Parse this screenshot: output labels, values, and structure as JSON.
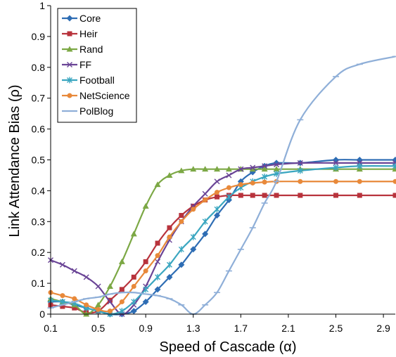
{
  "chart_data": {
    "type": "line",
    "xlabel": "Speed of Cascade (α)",
    "ylabel": "Link Attendance Bias (ρ)",
    "xlim": [
      0.1,
      3.0
    ],
    "ylim": [
      0,
      1
    ],
    "x_ticks": [
      "0.1",
      "0.5",
      "0.9",
      "1.3",
      "1.7",
      "2.1",
      "2.5",
      "2.9"
    ],
    "x_tick_values": [
      0.1,
      0.5,
      0.9,
      1.3,
      1.7,
      2.1,
      2.5,
      2.9
    ],
    "y_ticks": [
      "0",
      "0.1",
      "0.2",
      "0.3",
      "0.4",
      "0.5",
      "0.6",
      "0.7",
      "0.8",
      "0.9",
      "1"
    ],
    "y_tick_values": [
      0,
      0.1,
      0.2,
      0.3,
      0.4,
      0.5,
      0.6,
      0.7,
      0.8,
      0.9,
      1.0
    ],
    "grid": false,
    "legend_position": "top-left",
    "series": [
      {
        "name": "Core",
        "color": "#2E6DB4",
        "marker": "diamond",
        "x": [
          0.1,
          0.2,
          0.3,
          0.4,
          0.5,
          0.6,
          0.7,
          0.8,
          0.9,
          1.0,
          1.1,
          1.2,
          1.3,
          1.4,
          1.5,
          1.6,
          1.7,
          1.8,
          1.9,
          2.0,
          2.2,
          2.5,
          2.7,
          3.0
        ],
        "y": [
          0.04,
          0.04,
          0.03,
          0.02,
          0.01,
          0.0,
          0.0,
          0.01,
          0.04,
          0.08,
          0.12,
          0.16,
          0.21,
          0.26,
          0.32,
          0.37,
          0.43,
          0.46,
          0.48,
          0.49,
          0.49,
          0.5,
          0.5,
          0.5
        ]
      },
      {
        "name": "Heir",
        "color": "#B8333C",
        "marker": "square",
        "x": [
          0.1,
          0.2,
          0.3,
          0.4,
          0.5,
          0.6,
          0.7,
          0.8,
          0.9,
          1.0,
          1.1,
          1.2,
          1.3,
          1.4,
          1.5,
          1.6,
          1.7,
          1.8,
          1.9,
          2.0,
          2.2,
          2.5,
          2.7,
          3.0
        ],
        "y": [
          0.03,
          0.025,
          0.02,
          0.005,
          0.01,
          0.045,
          0.08,
          0.12,
          0.17,
          0.23,
          0.28,
          0.32,
          0.35,
          0.37,
          0.38,
          0.385,
          0.385,
          0.385,
          0.385,
          0.385,
          0.385,
          0.385,
          0.385,
          0.385
        ]
      },
      {
        "name": "Rand",
        "color": "#7CA845",
        "marker": "triangle",
        "x": [
          0.1,
          0.2,
          0.3,
          0.4,
          0.5,
          0.6,
          0.7,
          0.8,
          0.9,
          1.0,
          1.1,
          1.2,
          1.3,
          1.4,
          1.5,
          1.6,
          1.7,
          1.8,
          1.9,
          2.0,
          2.2,
          2.5,
          2.7,
          3.0
        ],
        "y": [
          0.05,
          0.04,
          0.03,
          0.0,
          0.03,
          0.09,
          0.17,
          0.26,
          0.35,
          0.42,
          0.45,
          0.465,
          0.47,
          0.47,
          0.47,
          0.47,
          0.47,
          0.47,
          0.47,
          0.47,
          0.47,
          0.47,
          0.47,
          0.47
        ]
      },
      {
        "name": "FF",
        "color": "#6A4496",
        "marker": "x",
        "x": [
          0.1,
          0.2,
          0.3,
          0.4,
          0.5,
          0.6,
          0.7,
          0.8,
          0.9,
          1.0,
          1.1,
          1.2,
          1.3,
          1.4,
          1.5,
          1.6,
          1.7,
          1.8,
          1.9,
          2.0,
          2.2,
          2.5,
          2.7,
          3.0
        ],
        "y": [
          0.175,
          0.16,
          0.14,
          0.12,
          0.09,
          0.04,
          0.0,
          0.03,
          0.09,
          0.17,
          0.24,
          0.3,
          0.35,
          0.39,
          0.43,
          0.45,
          0.47,
          0.475,
          0.48,
          0.485,
          0.49,
          0.49,
          0.49,
          0.49
        ]
      },
      {
        "name": "Football",
        "color": "#3AA6C0",
        "marker": "asterisk",
        "x": [
          0.1,
          0.2,
          0.3,
          0.4,
          0.5,
          0.6,
          0.7,
          0.8,
          0.9,
          1.0,
          1.1,
          1.2,
          1.3,
          1.4,
          1.5,
          1.6,
          1.7,
          1.8,
          1.9,
          2.0,
          2.2,
          2.5,
          2.7,
          3.0
        ],
        "y": [
          0.045,
          0.04,
          0.035,
          0.02,
          0.01,
          0.0,
          0.01,
          0.04,
          0.08,
          0.12,
          0.16,
          0.21,
          0.25,
          0.3,
          0.34,
          0.38,
          0.41,
          0.43,
          0.445,
          0.455,
          0.465,
          0.475,
          0.48,
          0.48
        ]
      },
      {
        "name": "NetScience",
        "color": "#E8893A",
        "marker": "circle",
        "x": [
          0.1,
          0.2,
          0.3,
          0.4,
          0.5,
          0.6,
          0.7,
          0.8,
          0.9,
          1.0,
          1.1,
          1.2,
          1.3,
          1.4,
          1.5,
          1.6,
          1.7,
          1.8,
          1.9,
          2.0,
          2.2,
          2.5,
          2.7,
          3.0
        ],
        "y": [
          0.07,
          0.06,
          0.05,
          0.03,
          0.015,
          0.01,
          0.04,
          0.09,
          0.14,
          0.19,
          0.25,
          0.3,
          0.34,
          0.37,
          0.395,
          0.41,
          0.42,
          0.425,
          0.428,
          0.43,
          0.43,
          0.43,
          0.43,
          0.43
        ]
      },
      {
        "name": "PolBlog",
        "color": "#8FAFD8",
        "marker": "dash",
        "x": [
          0.1,
          0.2,
          0.3,
          0.4,
          0.5,
          0.6,
          0.7,
          0.8,
          0.9,
          1.0,
          1.1,
          1.2,
          1.3,
          1.4,
          1.5,
          1.6,
          1.7,
          1.8,
          1.9,
          2.0,
          2.2,
          2.5,
          2.7,
          3.0
        ],
        "y": [
          0.02,
          0.03,
          0.04,
          0.05,
          0.055,
          0.065,
          0.07,
          0.07,
          0.065,
          0.06,
          0.05,
          0.03,
          0.0,
          0.03,
          0.07,
          0.14,
          0.21,
          0.28,
          0.36,
          0.43,
          0.63,
          0.77,
          0.81,
          0.835
        ]
      }
    ]
  }
}
